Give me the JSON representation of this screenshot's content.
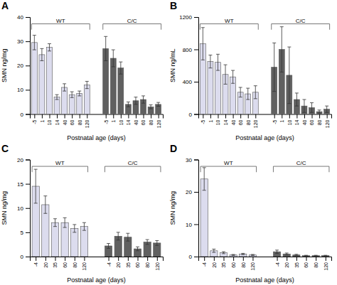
{
  "chart_data": [
    {
      "type": "bar",
      "title": "A",
      "xlabel": "Postnatal age (days)",
      "ylabel": "SMN ng/mg",
      "categories": [
        "-5",
        "1",
        "10",
        "14",
        "40",
        "60",
        "80",
        "120",
        "-5",
        "1",
        "10",
        "14",
        "40",
        "60",
        "80",
        "120"
      ],
      "series": [
        {
          "name": "WT",
          "color": "#dcdcee",
          "values": [
            29.5,
            24.5,
            27.5,
            7.0,
            11.0,
            8.0,
            8.5,
            12.0,
            null,
            null,
            null,
            null,
            null,
            null,
            null,
            null
          ],
          "errors": [
            3.0,
            2.5,
            1.5,
            1.0,
            1.5,
            1.2,
            1.0,
            1.5,
            null,
            null,
            null,
            null,
            null,
            null,
            null,
            null
          ]
        },
        {
          "name": "C/C",
          "color": "#606060",
          "values": [
            null,
            null,
            null,
            null,
            null,
            null,
            null,
            null,
            27.0,
            23.0,
            19.0,
            4.0,
            5.5,
            6.0,
            3.0,
            4.0
          ],
          "errors": [
            null,
            null,
            null,
            null,
            null,
            null,
            null,
            null,
            5.0,
            3.5,
            2.5,
            1.0,
            1.5,
            1.5,
            0.8,
            0.8
          ]
        }
      ],
      "ylim": [
        0,
        40
      ],
      "yticks": [
        0,
        10,
        20,
        30,
        40
      ]
    },
    {
      "type": "bar",
      "title": "B",
      "xlabel": "Postnatal age (days)",
      "ylabel": "SMN ng/mL",
      "categories": [
        "-5",
        "1",
        "10",
        "14",
        "40",
        "60",
        "80",
        "120",
        "-5",
        "1",
        "10",
        "14",
        "40",
        "60",
        "80",
        "120"
      ],
      "series": [
        {
          "name": "WT",
          "color": "#dcdcee",
          "values": [
            870,
            650,
            640,
            490,
            460,
            270,
            250,
            270,
            null,
            null,
            null,
            null,
            null,
            null,
            null,
            null
          ],
          "errors": [
            200,
            80,
            100,
            120,
            80,
            60,
            70,
            80,
            null,
            null,
            null,
            null,
            null,
            null,
            null,
            null
          ]
        },
        {
          "name": "C/C",
          "color": "#606060",
          "values": [
            null,
            null,
            null,
            null,
            null,
            null,
            null,
            null,
            580,
            800,
            480,
            180,
            100,
            80,
            30,
            60
          ],
          "errors": [
            null,
            null,
            null,
            null,
            null,
            null,
            null,
            null,
            300,
            280,
            350,
            80,
            80,
            60,
            20,
            40
          ]
        }
      ],
      "ylim": [
        0,
        1200
      ],
      "yticks": [
        0,
        400,
        800,
        1200
      ]
    },
    {
      "type": "bar",
      "title": "C",
      "xlabel": "Postnatal age (days)",
      "ylabel": "SMN ng/mg",
      "categories": [
        "-4",
        "20",
        "35",
        "60",
        "80",
        "120",
        "-4",
        "20",
        "35",
        "60",
        "80",
        "120"
      ],
      "series": [
        {
          "name": "WT",
          "color": "#dcdcee",
          "values": [
            14.5,
            10.7,
            7.0,
            7.0,
            5.8,
            6.2,
            null,
            null,
            null,
            null,
            null,
            null
          ],
          "errors": [
            3.5,
            1.8,
            0.8,
            1.0,
            0.8,
            0.8,
            null,
            null,
            null,
            null,
            null,
            null
          ]
        },
        {
          "name": "C/C",
          "color": "#606060",
          "values": [
            null,
            null,
            null,
            null,
            null,
            null,
            2.2,
            4.2,
            4.0,
            1.6,
            3.0,
            2.8
          ],
          "errors": [
            null,
            null,
            null,
            null,
            null,
            null,
            0.5,
            0.8,
            0.8,
            0.4,
            0.5,
            0.5
          ]
        }
      ],
      "ylim": [
        0,
        20
      ],
      "yticks": [
        0,
        5,
        10,
        15,
        20
      ]
    },
    {
      "type": "bar",
      "title": "D",
      "xlabel": "Postnatal age (days)",
      "ylabel": "SMN ng/mg",
      "categories": [
        "-4",
        "20",
        "35",
        "60",
        "80",
        "120",
        "-4",
        "20",
        "35",
        "60",
        "80",
        "120"
      ],
      "series": [
        {
          "name": "WT",
          "color": "#dcdcee",
          "values": [
            24.0,
            1.8,
            1.2,
            0.5,
            0.8,
            0.5,
            null,
            null,
            null,
            null,
            null,
            null
          ],
          "errors": [
            3.5,
            0.5,
            0.3,
            0.15,
            0.2,
            0.15,
            null,
            null,
            null,
            null,
            null,
            null
          ]
        },
        {
          "name": "C/C",
          "color": "#606060",
          "values": [
            null,
            null,
            null,
            null,
            null,
            null,
            1.5,
            0.8,
            0.5,
            0.3,
            0.3,
            0.3
          ],
          "errors": [
            null,
            null,
            null,
            null,
            null,
            null,
            0.5,
            0.3,
            0.2,
            0.1,
            0.1,
            0.1
          ]
        }
      ],
      "ylim": [
        0,
        30
      ],
      "yticks": [
        0,
        10,
        20,
        30
      ]
    }
  ]
}
